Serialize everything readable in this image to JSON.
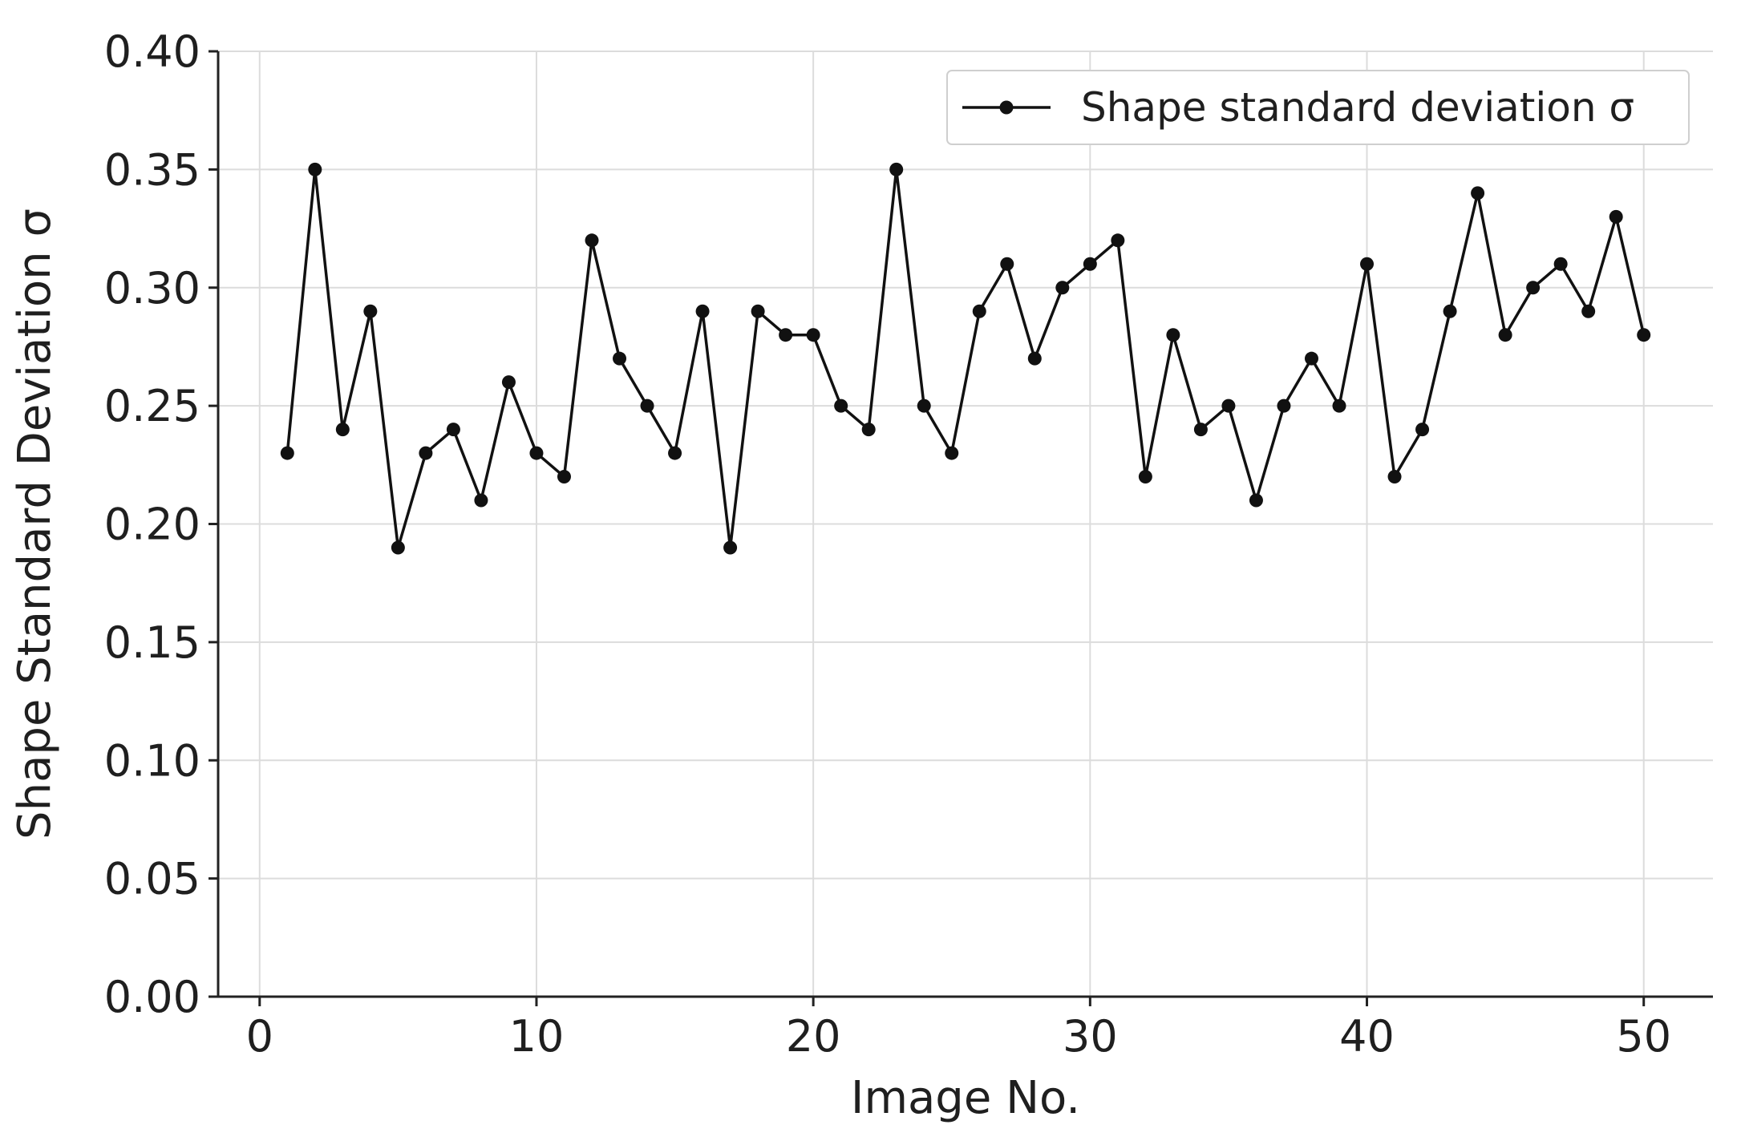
{
  "chart_data": {
    "type": "line",
    "xlabel": "Image No.",
    "ylabel": "Shape Standard Deviation σ",
    "xlim": [
      -1.5,
      52.5
    ],
    "ylim": [
      0.0,
      0.4
    ],
    "xticks": [
      0,
      10,
      20,
      30,
      40,
      50
    ],
    "xtick_labels": [
      "0",
      "10",
      "20",
      "30",
      "40",
      "50"
    ],
    "yticks": [
      0.0,
      0.05,
      0.1,
      0.15,
      0.2,
      0.25,
      0.3,
      0.35,
      0.4
    ],
    "ytick_labels": [
      "0.00",
      "0.05",
      "0.10",
      "0.15",
      "0.20",
      "0.25",
      "0.30",
      "0.35",
      "0.40"
    ],
    "grid": true,
    "legend_position": "top-right",
    "series": [
      {
        "name": "Shape standard deviation σ",
        "color": "#111111",
        "marker": "circle",
        "x": [
          1,
          2,
          3,
          4,
          5,
          6,
          7,
          8,
          9,
          10,
          11,
          12,
          13,
          14,
          15,
          16,
          17,
          18,
          19,
          20,
          21,
          22,
          23,
          24,
          25,
          26,
          27,
          28,
          29,
          30,
          31,
          32,
          33,
          34,
          35,
          36,
          37,
          38,
          39,
          40,
          41,
          42,
          43,
          44,
          45,
          46,
          47,
          48,
          49,
          50
        ],
        "values": [
          0.23,
          0.35,
          0.24,
          0.29,
          0.19,
          0.23,
          0.24,
          0.21,
          0.26,
          0.23,
          0.22,
          0.32,
          0.27,
          0.25,
          0.23,
          0.29,
          0.19,
          0.29,
          0.28,
          0.28,
          0.25,
          0.24,
          0.35,
          0.25,
          0.23,
          0.29,
          0.31,
          0.27,
          0.3,
          0.31,
          0.32,
          0.22,
          0.28,
          0.24,
          0.25,
          0.21,
          0.25,
          0.27,
          0.25,
          0.31,
          0.22,
          0.24,
          0.29,
          0.34,
          0.28,
          0.3,
          0.31,
          0.29,
          0.33,
          0.28
        ]
      }
    ]
  }
}
